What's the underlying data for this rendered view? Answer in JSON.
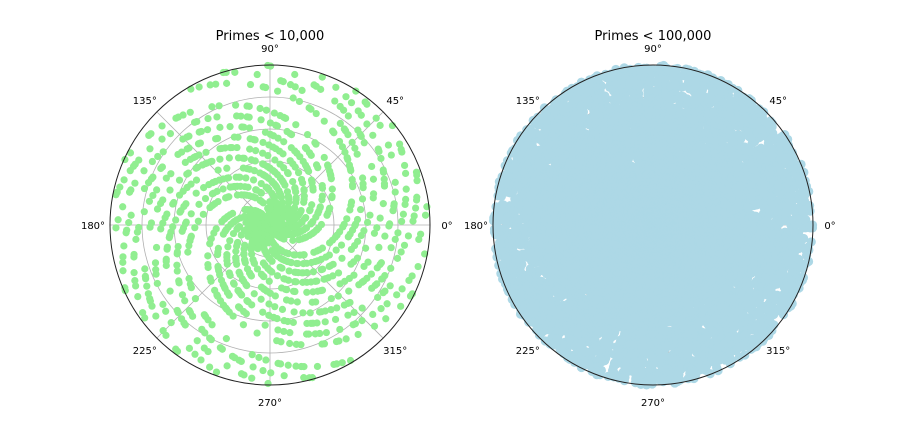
{
  "figure": {
    "background": "#ffffff"
  },
  "chart_data": [
    {
      "type": "scatter",
      "projection": "polar",
      "title": "Primes < 10,000",
      "description": "Prime p plotted at (r = p, theta = p radians); primes below 10,000",
      "n_limit": 10000,
      "rlim": [
        0,
        10000
      ],
      "angle_ticks": [
        0,
        45,
        90,
        135,
        180,
        225,
        270,
        315
      ],
      "angle_tick_labels": [
        "0°",
        "45°",
        "90°",
        "135°",
        "180°",
        "225°",
        "270°",
        "315°"
      ],
      "radial_gridlines": [
        2000,
        4000,
        6000,
        8000
      ],
      "radial_tick_labels_visible": false,
      "grid": true,
      "color": "#90ee90",
      "marker": "circle"
    },
    {
      "type": "scatter",
      "projection": "polar",
      "title": "Primes < 100,000",
      "description": "Prime p plotted at (r = p, theta = p radians); primes below 100,000",
      "n_limit": 100000,
      "rlim": [
        0,
        100000
      ],
      "angle_ticks": [
        0,
        45,
        90,
        135,
        180,
        225,
        270,
        315
      ],
      "angle_tick_labels": [
        "0°",
        "45°",
        "90°",
        "135°",
        "180°",
        "225°",
        "270°",
        "315°"
      ],
      "radial_gridlines": [
        20000,
        40000,
        60000,
        80000
      ],
      "radial_tick_labels_visible": false,
      "grid": true,
      "color": "#add8e6",
      "marker": "circle"
    }
  ]
}
